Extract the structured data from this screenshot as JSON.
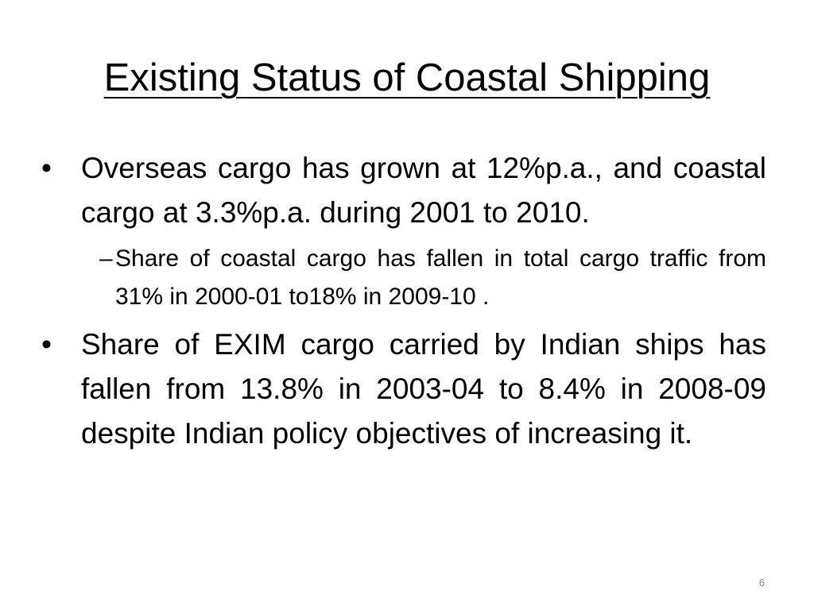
{
  "slide": {
    "title": "Existing Status of Coastal Shipping",
    "bullets": [
      {
        "marker": "•",
        "text": "Overseas cargo has grown at 12%p.a., and coastal cargo at 3.3%p.a. during 2001 to 2010.",
        "sub_bullets": [
          {
            "marker": "–",
            "text": "Share of coastal cargo has fallen in total cargo traffic from 31% in 2000-01 to18% in 2009-10 ."
          }
        ]
      },
      {
        "marker": "•",
        "text": "Share of EXIM cargo carried by Indian ships has fallen from 13.8% in 2003-04 to 8.4% in 2008-09 despite Indian policy objectives of increasing it."
      }
    ],
    "page_number": "6"
  }
}
